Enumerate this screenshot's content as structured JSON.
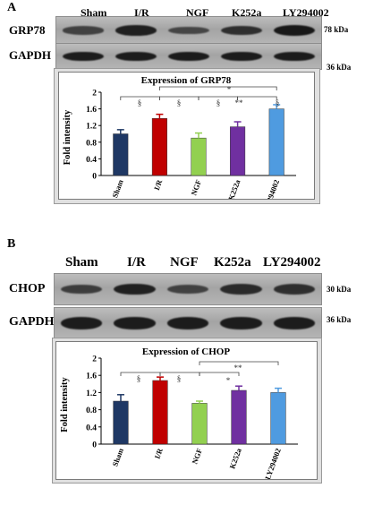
{
  "panelA": {
    "label": "A",
    "lanes": [
      "Sham",
      "I/R",
      "NGF",
      "K252a",
      "LY294002"
    ],
    "rows": [
      {
        "name": "GRP78",
        "kda": "78 kDa",
        "intensity": [
          0.55,
          0.9,
          0.5,
          0.75,
          1.0
        ]
      },
      {
        "name": "GAPDH",
        "kda": "36 kDa",
        "intensity": [
          0.95,
          0.95,
          0.95,
          0.95,
          0.95
        ]
      }
    ]
  },
  "panelB": {
    "label": "B",
    "lanes": [
      "Sham",
      "I/R",
      "NGF",
      "K252a",
      "LY294002"
    ],
    "rows": [
      {
        "name": "CHOP",
        "kda": "30 kDa",
        "intensity": [
          0.6,
          0.9,
          0.55,
          0.8,
          0.75
        ]
      },
      {
        "name": "GAPDH",
        "kda": "36 kDa",
        "intensity": [
          0.95,
          0.95,
          0.95,
          0.95,
          0.95
        ]
      }
    ]
  },
  "chart_data": [
    {
      "type": "bar",
      "title": "Expression  of GRP78",
      "ylabel": "Fold intensity",
      "categories": [
        "Sham",
        "I/R",
        "NGF",
        "K252a",
        "LY294002"
      ],
      "values": [
        1.0,
        1.37,
        0.9,
        1.17,
        1.6
      ],
      "errors": [
        0.1,
        0.1,
        0.12,
        0.12,
        0.1
      ],
      "colors": [
        "#1f3864",
        "#c00000",
        "#92d050",
        "#7030a0",
        "#4f9be0"
      ],
      "ylim": [
        0,
        2
      ],
      "yticks": [
        "0",
        "0.4",
        "0.8",
        "1.2",
        "1.6",
        "2"
      ],
      "annotations": [
        "§",
        "§",
        "§",
        "**",
        "§",
        "*"
      ]
    },
    {
      "type": "bar",
      "title": "Expression  of CHOP",
      "ylabel": "Fold intensity",
      "categories": [
        "Sham",
        "I/R",
        "NGF",
        "K252a",
        "LY294002"
      ],
      "values": [
        1.0,
        1.48,
        0.95,
        1.25,
        1.2
      ],
      "errors": [
        0.15,
        0.08,
        0.05,
        0.1,
        0.1
      ],
      "colors": [
        "#1f3864",
        "#c00000",
        "#92d050",
        "#7030a0",
        "#4f9be0"
      ],
      "ylim": [
        0,
        2
      ],
      "yticks": [
        "0",
        "0.4",
        "0.8",
        "1.2",
        "1.6",
        "2"
      ],
      "annotations": [
        "§",
        "§",
        "*",
        "**"
      ]
    }
  ]
}
